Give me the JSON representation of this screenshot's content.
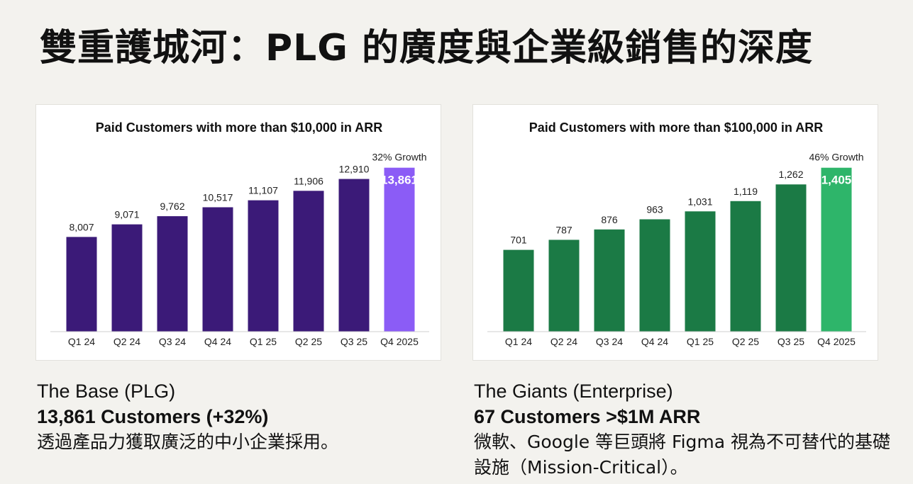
{
  "page": {
    "title": "雙重護城河：PLG 的廣度與企業級銷售的深度"
  },
  "chart_data": [
    {
      "type": "bar",
      "title": "Paid Customers with more than $10,000 in ARR",
      "categories": [
        "Q1 24",
        "Q2 24",
        "Q3 24",
        "Q4 24",
        "Q1 25",
        "Q2 25",
        "Q3 25",
        "Q4 2025"
      ],
      "values": [
        8007,
        9071,
        9762,
        10517,
        11107,
        11906,
        12910,
        13861
      ],
      "value_labels": [
        "8,007",
        "9,071",
        "9,762",
        "10,517",
        "11,107",
        "11,906",
        "12,910",
        "13,861"
      ],
      "annotation": "32% Growth",
      "bar_color": "#3b1a78",
      "highlight_color": "#8b5cf6",
      "ylim": [
        0,
        14500
      ],
      "grid": false
    },
    {
      "type": "bar",
      "title": "Paid Customers with more than $100,000 in ARR",
      "categories": [
        "Q1 24",
        "Q2 24",
        "Q3 24",
        "Q4 24",
        "Q1 25",
        "Q2 25",
        "Q3 25",
        "Q4 2025"
      ],
      "values": [
        701,
        787,
        876,
        963,
        1031,
        1119,
        1262,
        1405
      ],
      "value_labels": [
        "701",
        "787",
        "876",
        "963",
        "1,031",
        "1,119",
        "1,262",
        "1,405"
      ],
      "annotation": "46% Growth",
      "bar_color": "#1b7a45",
      "highlight_color": "#2eb56a",
      "ylim": [
        0,
        1470
      ],
      "grid": false
    }
  ],
  "captions": {
    "left": {
      "title": "The Base (PLG)",
      "stat": "13,861 Customers (+32%)",
      "description": "透過產品力獲取廣泛的中小企業採用。"
    },
    "right": {
      "title": "The Giants (Enterprise)",
      "stat": "67 Customers >$1M ARR",
      "description": "微軟、Google 等巨頭將 Figma 視為不可替代的基礎設施（Mission-Critical）。"
    }
  }
}
